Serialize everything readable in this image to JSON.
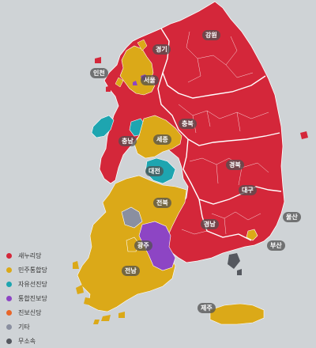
{
  "colors": {
    "saenuri": "#d4273a",
    "minju": "#dba918",
    "jayu": "#1ea5b0",
    "tonghap": "#8d45c4",
    "jinbo": "#e8662a",
    "other": "#8a8fa0",
    "independent": "#55585f",
    "sea": "#cfd3d6",
    "border": "#ffffff"
  },
  "regions": {
    "gangwon": "강원",
    "gyeonggi": "경기",
    "incheon": "인천",
    "seoul": "서울",
    "chungbuk": "충북",
    "chungnam": "충남",
    "sejong": "세종",
    "daejeon": "대전",
    "gyeongbuk": "경북",
    "daegu": "대구",
    "jeonbuk": "전북",
    "ulsan": "울산",
    "gyeongnam": "경남",
    "busan": "부산",
    "gwangju": "광주",
    "jeonnam": "전남",
    "jeju": "제주"
  },
  "legend": [
    {
      "label": "새누리당",
      "color": "#d4273a"
    },
    {
      "label": "민주통합당",
      "color": "#dba918"
    },
    {
      "label": "자유선진당",
      "color": "#1ea5b0"
    },
    {
      "label": "통합진보당",
      "color": "#8d45c4"
    },
    {
      "label": "진보신당",
      "color": "#e8662a"
    },
    {
      "label": "기타",
      "color": "#8a8fa0"
    },
    {
      "label": "무소속",
      "color": "#55585f"
    }
  ]
}
